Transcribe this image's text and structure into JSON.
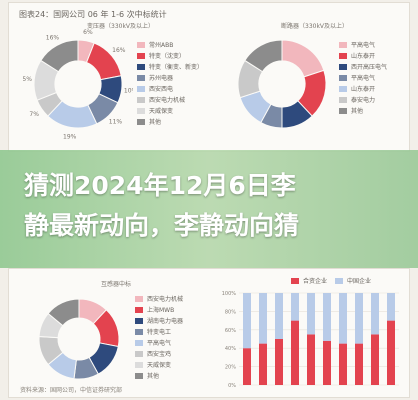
{
  "figure_caption": "图表24：国网公司 06 年 1-6 次中标统计",
  "banner": {
    "line1": "猜测2024年12月6日李",
    "line2": "静最新动向，李静动向猜"
  },
  "source_note": "资料来源：国网公司，中信证券研究部",
  "colors": {
    "pink": "#f2b7bd",
    "red": "#e3434f",
    "navy": "#2e4a7d",
    "slate": "#7a8aa6",
    "lightblue": "#b8cbe8",
    "gray": "#c9c9c9",
    "lightgray": "#dcdcdc",
    "darkgray": "#8c8c8c"
  },
  "chart_data": [
    {
      "type": "pie",
      "title": "变压器（330kV及以上）",
      "labels": [
        "常州ABB",
        "特变（沈变）",
        "特变（衡变、新变）",
        "苏州电器",
        "西安西电",
        "西安电力机械",
        "天威保变",
        "其他"
      ],
      "values": [
        6,
        16,
        10,
        11,
        19,
        7,
        15,
        16
      ],
      "slice_labels": [
        "6%",
        "16%",
        "10%",
        "11%",
        "19%",
        "7%",
        "15%",
        "16%"
      ],
      "colors": [
        "#f2b7bd",
        "#e3434f",
        "#2e4a7d",
        "#7a8aa6",
        "#b8cbe8",
        "#c9c9c9",
        "#dcdcdc",
        "#8c8c8c"
      ]
    },
    {
      "type": "pie",
      "title": "断路器（330kV及以上）",
      "labels": [
        "平高电气",
        "山东泰开",
        "西开高压电气",
        "平高电气",
        "山东泰开",
        "泰安电力",
        "其他"
      ],
      "values": [
        20,
        18,
        12,
        8,
        12,
        14,
        16
      ],
      "slice_labels": [
        "",
        "",
        "",
        "",
        "",
        "",
        ""
      ],
      "colors": [
        "#f2b7bd",
        "#e3434f",
        "#2e4a7d",
        "#7a8aa6",
        "#b8cbe8",
        "#c9c9c9",
        "#8c8c8c"
      ]
    },
    {
      "type": "pie",
      "title": "互感器中标",
      "labels": [
        "西安电力机械",
        "上海MWB",
        "湖南电力电器",
        "特变电工",
        "平高电气",
        "西安宝鸡",
        "天威保变",
        "其他"
      ],
      "values": [
        12,
        16,
        14,
        10,
        12,
        12,
        10,
        14
      ],
      "slice_labels": [
        "",
        "",
        "",
        "",
        "",
        "",
        "",
        ""
      ],
      "colors": [
        "#f2b7bd",
        "#e3434f",
        "#2e4a7d",
        "#7a8aa6",
        "#b8cbe8",
        "#c9c9c9",
        "#dcdcdc",
        "#8c8c8c"
      ]
    },
    {
      "type": "bar",
      "stacked": true,
      "title": "",
      "legend": [
        "合资企业",
        "中国企业"
      ],
      "categories": [
        "1",
        "2",
        "3",
        "4",
        "5",
        "6",
        "7",
        "8",
        "9",
        "10"
      ],
      "series": [
        {
          "name": "合资企业",
          "values": [
            40,
            45,
            50,
            70,
            55,
            48,
            45,
            45,
            55,
            70
          ]
        },
        {
          "name": "中国企业",
          "values": [
            60,
            55,
            50,
            30,
            45,
            52,
            55,
            55,
            45,
            30
          ]
        }
      ],
      "ylim": [
        0,
        100
      ],
      "yticks": [
        "100%",
        "80%",
        "60%",
        "40%",
        "20%",
        "0%"
      ],
      "colors": [
        "#e3434f",
        "#b8cbe8"
      ]
    }
  ]
}
